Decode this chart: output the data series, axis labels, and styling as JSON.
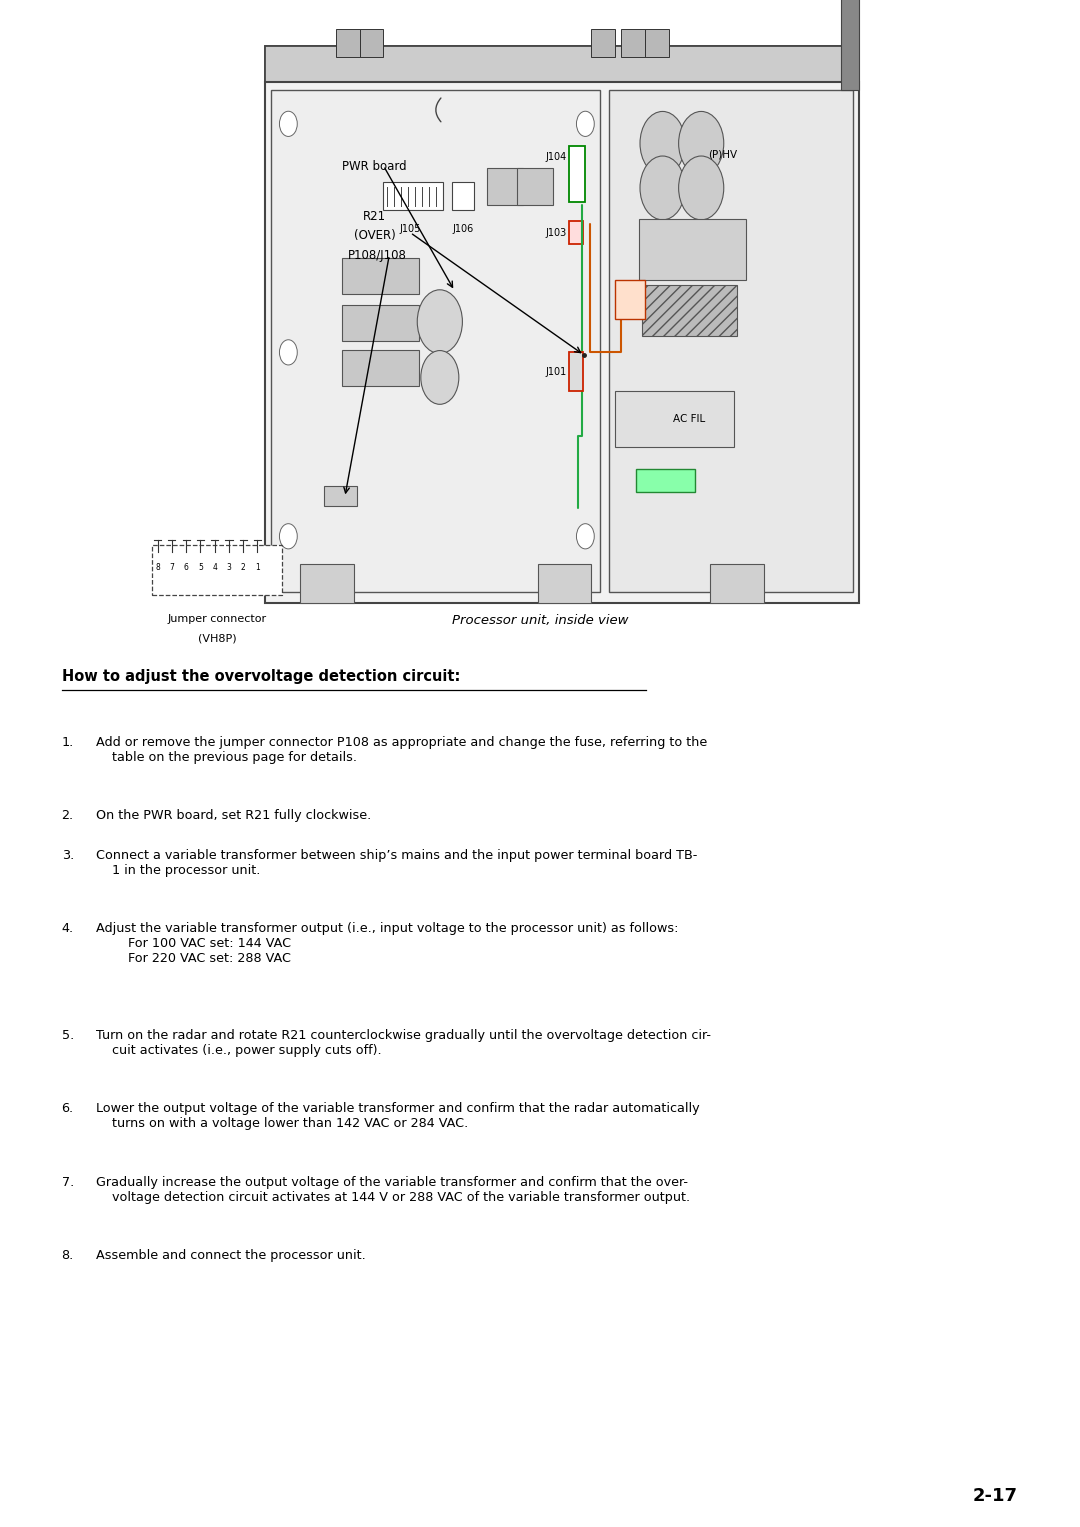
{
  "page_bg": "#ffffff",
  "fig_caption": "Processor unit, inside view",
  "section_title": "How to adjust the overvoltage detection circuit:",
  "page_number": "2-17",
  "step_texts": [
    "Add or remove the jumper connector P108 as appropriate and change the fuse, referring to the\n    table on the previous page for details.",
    "On the PWR board, set R21 fully clockwise.",
    "Connect a variable transformer between ship’s mains and the input power terminal board TB-\n    1 in the processor unit.",
    "Adjust the variable transformer output (i.e., input voltage to the processor unit) as follows:\n        For 100 VAC set: 144 VAC\n        For 220 VAC set: 288 VAC",
    "Turn on the radar and rotate R21 counterclockwise gradually until the overvoltage detection cir-\n    cuit activates (i.e., power supply cuts off).",
    "Lower the output voltage of the variable transformer and confirm that the radar automatically\n    turns on with a voltage lower than 142 VAC or 284 VAC.",
    "Gradually increase the output voltage of the variable transformer and confirm that the over-\n    voltage detection circuit activates at 144 V or 288 VAC of the variable transformer output.",
    "Assemble and connect the processor unit."
  ]
}
